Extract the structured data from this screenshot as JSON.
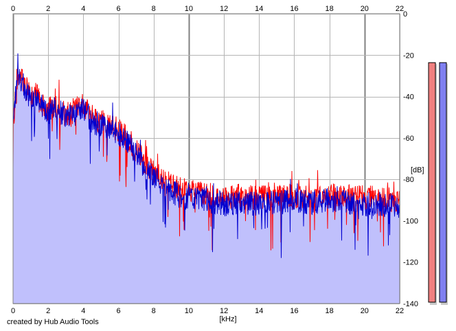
{
  "credit": "created by Hub Audio Tools",
  "colors": {
    "background": "#ffffff",
    "grid": "#b4b4b4",
    "grid_major": "#808080",
    "left_channel": "#ff0000",
    "right_channel": "#0000d0",
    "fill": "#c0c0fc",
    "meter_left": "#f08080",
    "meter_right": "#8080f0"
  },
  "chart_data": {
    "type": "line",
    "xlabel": "[kHz]",
    "ylabel": "[dB]",
    "xlim": [
      0,
      22
    ],
    "ylim": [
      -140,
      0
    ],
    "x_ticks": [
      "0",
      "2",
      "4",
      "6",
      "8",
      "10",
      "12",
      "14",
      "16",
      "18",
      "20",
      "22"
    ],
    "y_ticks": [
      "0",
      "-20",
      "-40",
      "-60",
      "-80",
      "-100",
      "-120",
      "-140"
    ],
    "grid": true,
    "series": [
      {
        "color": "#ff0000",
        "x": [
          0,
          0.25,
          0.5,
          0.75,
          1,
          1.25,
          1.5,
          1.75,
          2,
          2.25,
          2.5,
          2.75,
          3,
          3.25,
          3.5,
          3.75,
          4,
          4.25,
          4.5,
          4.75,
          5,
          5.25,
          5.5,
          5.75,
          6,
          6.5,
          7,
          7.5,
          8,
          8.5,
          9,
          9.5,
          10,
          11,
          12,
          13,
          14,
          15,
          16,
          17,
          18,
          19,
          20,
          21,
          22
        ],
        "values": [
          -52,
          -33,
          -31,
          -36,
          -40,
          -38,
          -42,
          -45,
          -47,
          -44,
          -45,
          -47,
          -49,
          -48,
          -47,
          -45,
          -44,
          -48,
          -50,
          -51,
          -52,
          -53,
          -54,
          -55,
          -56,
          -60,
          -66,
          -72,
          -76,
          -80,
          -83,
          -85,
          -86,
          -87,
          -89,
          -88,
          -89,
          -88,
          -88,
          -88,
          -87,
          -88,
          -89,
          -89,
          -91
        ]
      },
      {
        "color": "#0000d0",
        "x": [
          0,
          0.25,
          0.5,
          0.75,
          1,
          1.25,
          1.5,
          1.75,
          2,
          2.25,
          2.5,
          2.75,
          3,
          3.25,
          3.5,
          3.75,
          4,
          4.25,
          4.5,
          4.75,
          5,
          5.25,
          5.5,
          5.75,
          6,
          6.5,
          7,
          7.5,
          8,
          8.5,
          9,
          9.5,
          10,
          11,
          12,
          13,
          14,
          15,
          16,
          17,
          18,
          19,
          20,
          21,
          22
        ],
        "values": [
          -54,
          -30,
          -33,
          -38,
          -41,
          -40,
          -43,
          -46,
          -49,
          -45,
          -47,
          -48,
          -50,
          -49,
          -49,
          -47,
          -46,
          -50,
          -52,
          -53,
          -54,
          -55,
          -56,
          -57,
          -58,
          -62,
          -68,
          -74,
          -79,
          -82,
          -86,
          -88,
          -89,
          -90,
          -92,
          -91,
          -92,
          -91,
          -91,
          -91,
          -90,
          -91,
          -92,
          -92,
          -94
        ]
      }
    ],
    "level_meters": [
      {
        "peak_db": -12.5
      },
      {
        "peak_db": -12.5
      }
    ]
  }
}
